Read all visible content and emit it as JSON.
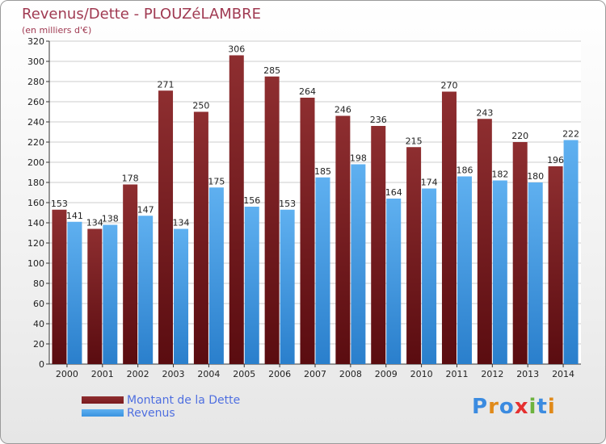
{
  "title": "Revenus/Dette - PLOUZéLAMBRE",
  "subtitle": "(en milliers d'€)",
  "logo": "Proxiti",
  "colors": {
    "debt": "#7a1a1e",
    "revenue": "#3a93e0",
    "title": "#a03a52",
    "legend_text": "#4f6fe0"
  },
  "chart_data": {
    "type": "bar",
    "categories": [
      "2000",
      "2001",
      "2002",
      "2003",
      "2004",
      "2005",
      "2006",
      "2007",
      "2008",
      "2009",
      "2010",
      "2011",
      "2012",
      "2013",
      "2014"
    ],
    "series": [
      {
        "name": "Montant de la Dette",
        "values": [
          153,
          134,
          178,
          271,
          250,
          306,
          285,
          264,
          246,
          236,
          215,
          270,
          243,
          220,
          196
        ]
      },
      {
        "name": "Revenus",
        "values": [
          141,
          138,
          147,
          134,
          175,
          156,
          153,
          185,
          198,
          164,
          174,
          186,
          182,
          180,
          222
        ]
      }
    ],
    "ylim": [
      0,
      320
    ],
    "yticks": [
      0,
      20,
      40,
      60,
      80,
      100,
      120,
      140,
      160,
      180,
      200,
      220,
      240,
      260,
      280,
      300,
      320
    ],
    "grid": true,
    "legend_position": "bottom-left"
  }
}
